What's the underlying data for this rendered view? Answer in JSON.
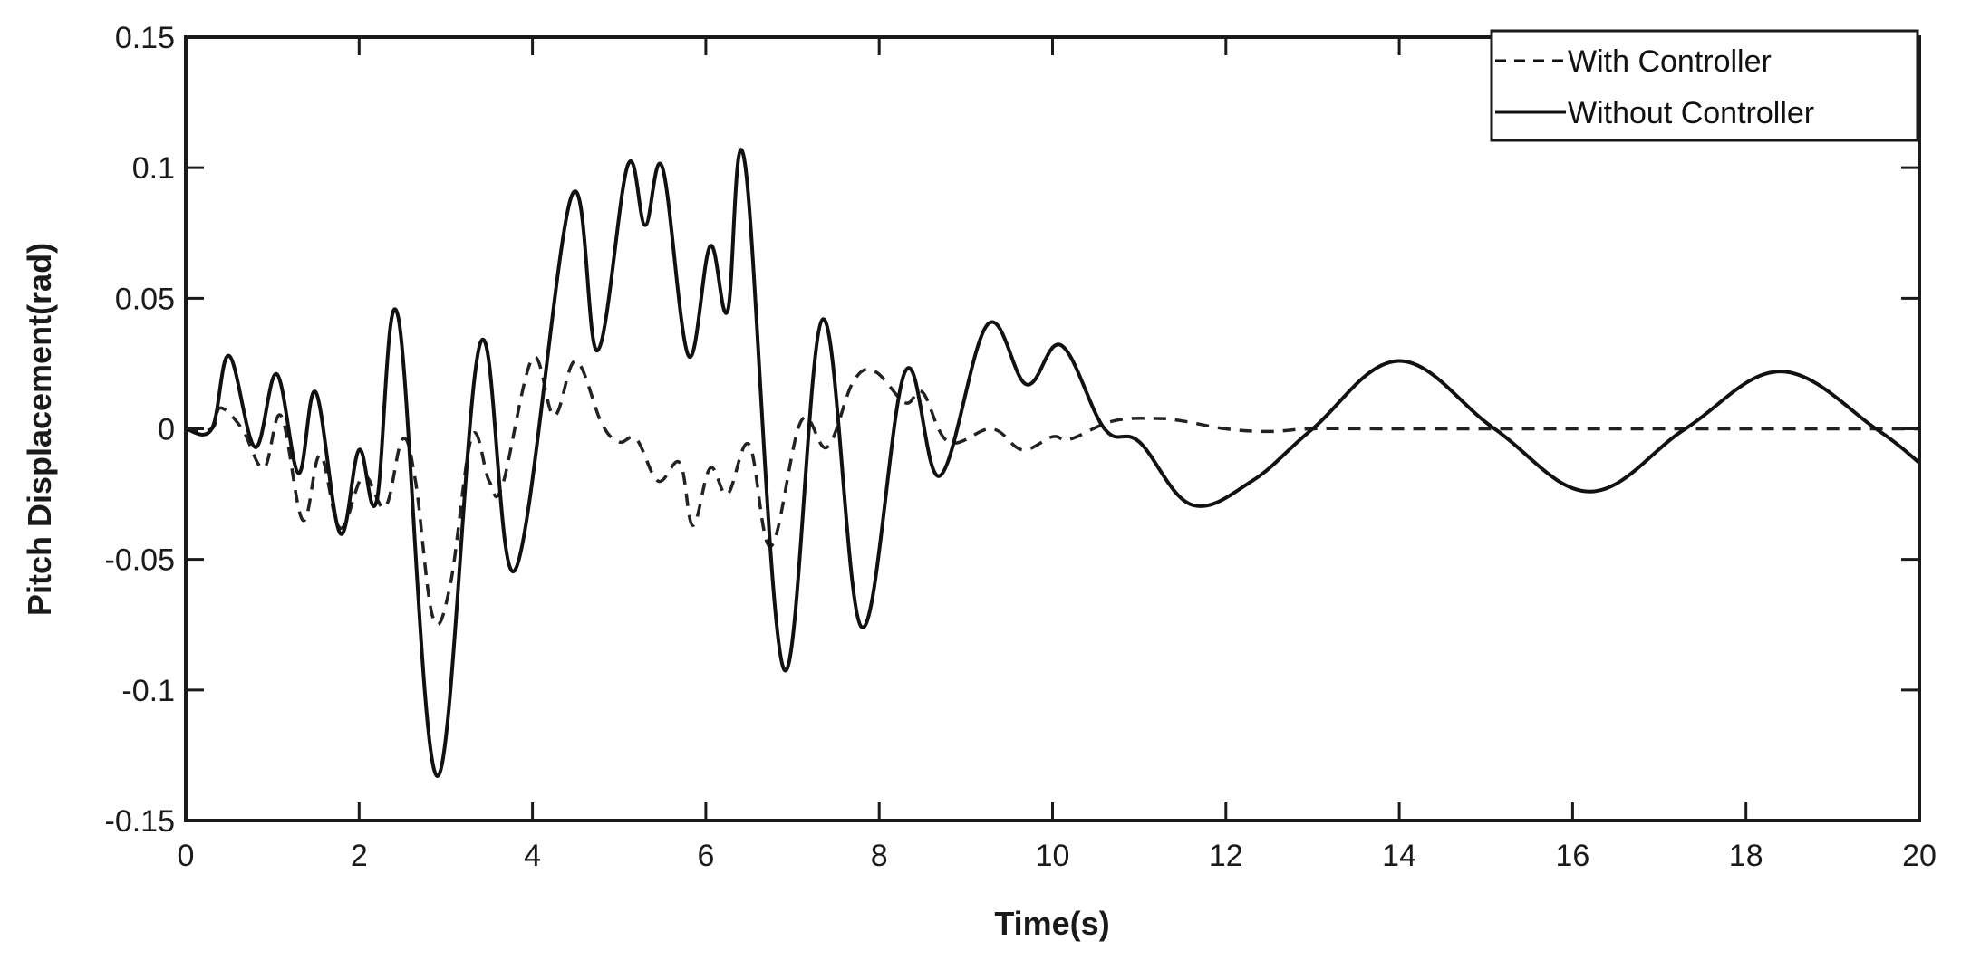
{
  "chart_data": {
    "type": "line",
    "title": "",
    "xlabel": "Time(s)",
    "ylabel": "Pitch Displacement(rad)",
    "xlim": [
      0,
      20
    ],
    "ylim": [
      -0.15,
      0.15
    ],
    "xticks": [
      0,
      2,
      4,
      6,
      8,
      10,
      12,
      14,
      16,
      18,
      20
    ],
    "xtick_labels": [
      "0",
      "2",
      "4",
      "6",
      "8",
      "10",
      "12",
      "14",
      "16",
      "18",
      "20"
    ],
    "yticks": [
      -0.15,
      -0.1,
      -0.05,
      0,
      0.05,
      0.1,
      0.15
    ],
    "ytick_labels": [
      "-0.15",
      "-0.1",
      "-0.05",
      "0",
      "0.05",
      "0.1",
      "0.15"
    ],
    "grid": false,
    "legend_position": "upper right",
    "series": [
      {
        "name": "With Controller",
        "style": "dashed",
        "color": "#222222",
        "x": [
          0,
          0.3,
          0.4,
          0.65,
          0.9,
          1.1,
          1.35,
          1.55,
          1.78,
          2.05,
          2.3,
          2.5,
          2.65,
          2.85,
          3.05,
          3.3,
          3.5,
          3.65,
          4.0,
          4.25,
          4.5,
          4.8,
          5.0,
          5.2,
          5.45,
          5.7,
          5.85,
          6.05,
          6.25,
          6.5,
          6.75,
          7.1,
          7.4,
          7.7,
          7.95,
          8.3,
          8.5,
          8.8,
          9.3,
          9.65,
          10.0,
          10.2,
          10.7,
          11.2,
          11.5,
          12.0,
          12.5,
          13.0,
          14.0,
          16.0,
          18.0,
          20.0
        ],
        "y": [
          0,
          0,
          0.008,
          0.0,
          -0.015,
          0.005,
          -0.035,
          -0.01,
          -0.038,
          -0.018,
          -0.03,
          -0.004,
          -0.02,
          -0.072,
          -0.06,
          -0.003,
          -0.02,
          -0.022,
          0.027,
          0.005,
          0.026,
          0.002,
          -0.005,
          -0.004,
          -0.02,
          -0.013,
          -0.037,
          -0.015,
          -0.025,
          -0.006,
          -0.045,
          0.003,
          -0.007,
          0.018,
          0.022,
          0.01,
          0.014,
          -0.005,
          0.0,
          -0.008,
          -0.003,
          -0.004,
          0.003,
          0.004,
          0.003,
          0.0,
          -0.001,
          0.0,
          0.0,
          0.0,
          0.0,
          0.0
        ]
      },
      {
        "name": "Without Controller",
        "style": "solid",
        "color": "#111111",
        "x": [
          0,
          0.3,
          0.5,
          0.8,
          1.05,
          1.3,
          1.5,
          1.78,
          2.0,
          2.2,
          2.45,
          2.9,
          3.4,
          3.8,
          4.45,
          4.75,
          5.1,
          5.3,
          5.5,
          5.8,
          6.05,
          6.25,
          6.45,
          6.9,
          7.35,
          7.8,
          8.3,
          8.7,
          9.25,
          9.7,
          10.1,
          10.6,
          11.0,
          11.6,
          12.3,
          13.0,
          14.0,
          15.1,
          16.2,
          17.3,
          18.4,
          19.5,
          20.0
        ],
        "y": [
          0,
          0,
          0.028,
          -0.007,
          0.021,
          -0.017,
          0.014,
          -0.04,
          -0.008,
          -0.028,
          0.043,
          -0.133,
          0.033,
          -0.054,
          0.089,
          0.03,
          0.101,
          0.078,
          0.1,
          0.028,
          0.07,
          0.045,
          0.102,
          -0.092,
          0.042,
          -0.076,
          0.022,
          -0.018,
          0.04,
          0.017,
          0.032,
          0.0,
          -0.005,
          -0.029,
          -0.02,
          0.0,
          0.026,
          0.0,
          -0.024,
          0.0,
          0.022,
          0.0,
          -0.013
        ]
      }
    ]
  },
  "legend": {
    "items": [
      {
        "label": "With Controller",
        "line": "dashed"
      },
      {
        "label": "Without Controller",
        "line": "solid"
      }
    ]
  },
  "axes": {
    "xlabel": "Time(s)",
    "ylabel": "Pitch Displacement(rad)"
  }
}
